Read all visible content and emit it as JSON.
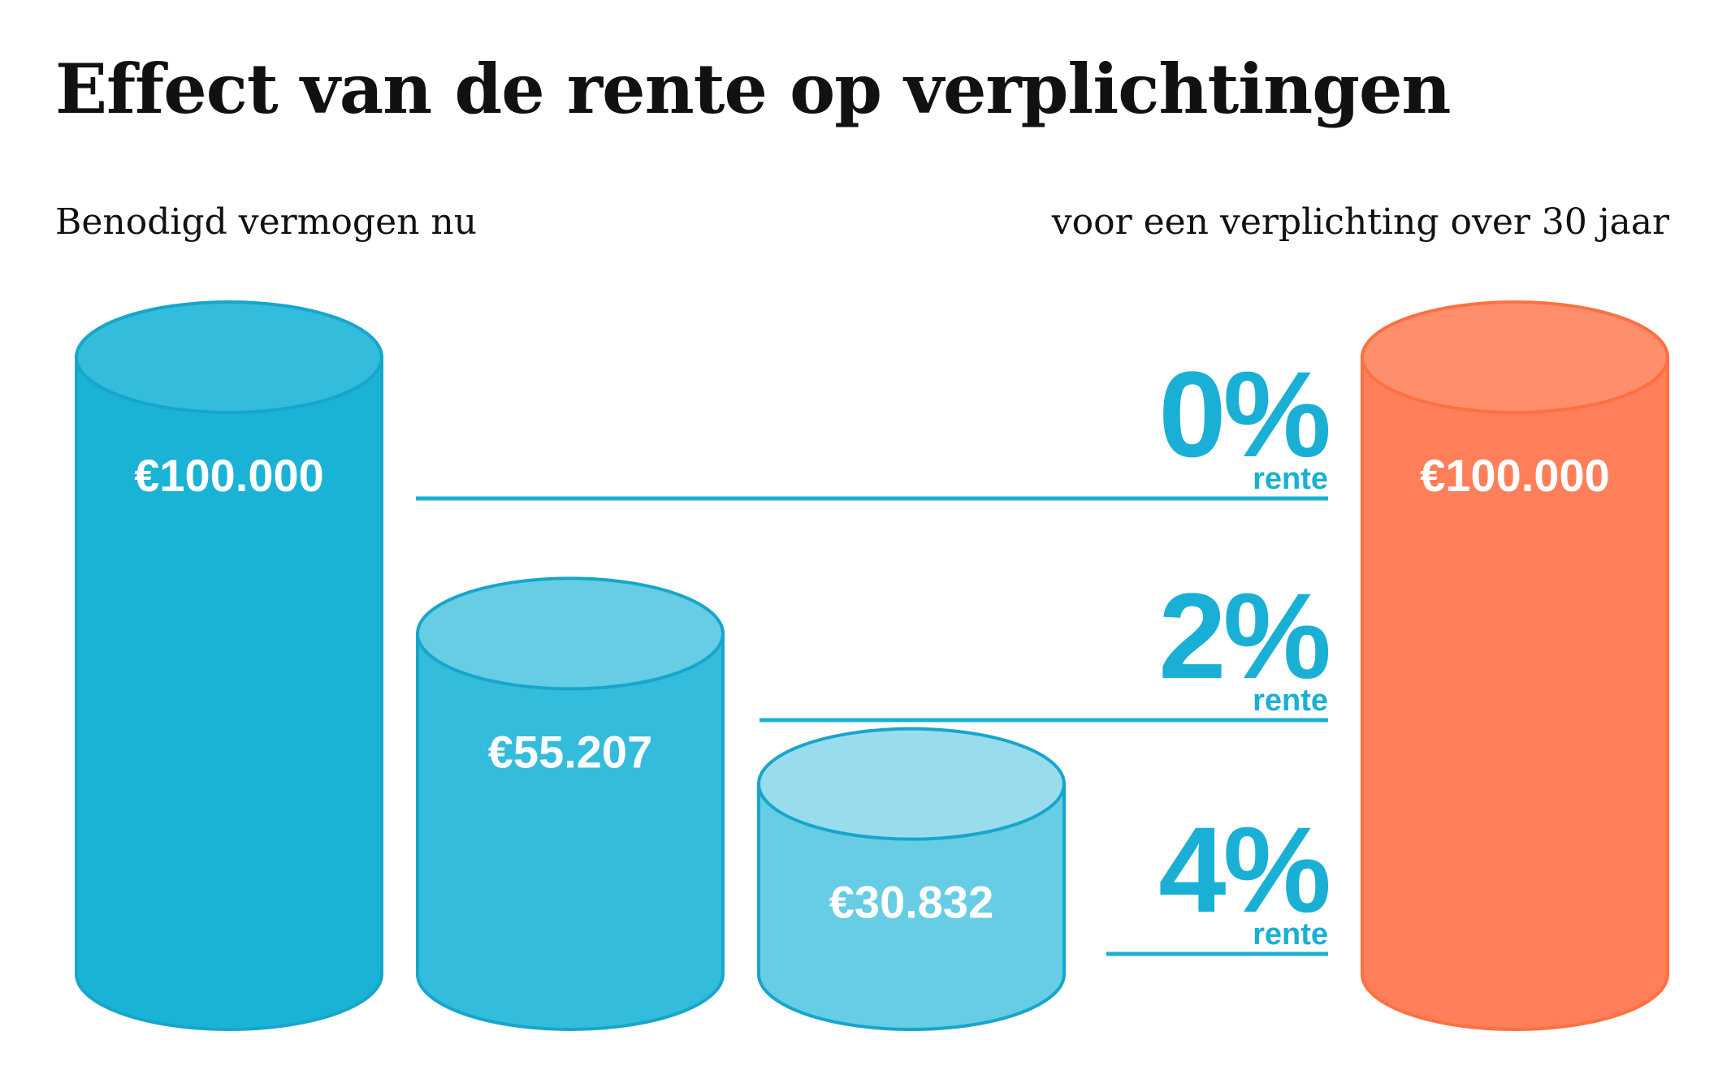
{
  "title": "Effect van de rente op verplichtingen",
  "subtitle_left": "Benodigd vermogen nu",
  "subtitle_right": "voor een verplichting over 30 jaar",
  "colors": {
    "present_body": [
      "#1ab3d6",
      "#33bcdc",
      "#66cde5"
    ],
    "present_top": [
      "#33bcdc",
      "#66cde5",
      "#99dced"
    ],
    "present_edge": "#17a6cb",
    "future_body": "#ff7f5a",
    "future_top": "#ff8f6c",
    "future_edge": "#ff7040",
    "line": "#1ab0d5"
  },
  "chart_data": {
    "type": "bar",
    "categories": [
      "0% rente",
      "2% rente",
      "4% rente"
    ],
    "series": [
      {
        "values": [
          100000,
          55207,
          30832
        ]
      },
      {
        "values": [
          100000,
          100000,
          100000
        ]
      }
    ],
    "value_labels": [
      "€100.000",
      "€55.207",
      "€30.832"
    ],
    "future_label": "€100.000",
    "rates": [
      {
        "value": "0%",
        "label": "rente"
      },
      {
        "value": "2%",
        "label": "rente"
      },
      {
        "value": "4%",
        "label": "rente"
      }
    ]
  }
}
